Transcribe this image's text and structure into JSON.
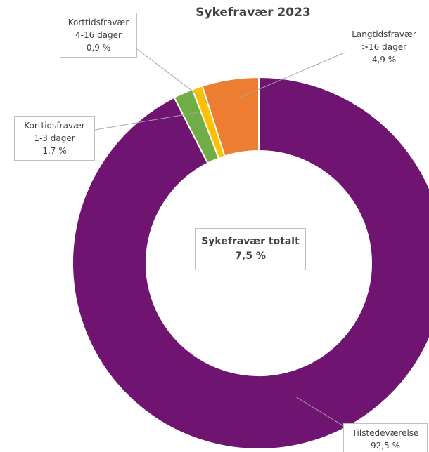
{
  "chart_data": {
    "type": "donut",
    "title": "Sykefravær 2023",
    "categories": [
      "Tilstedeværelse",
      "Korttidsfravær 1-3 dager",
      "Korttidsfravær 4-16 dager",
      "Langtidsfravær >16 dager"
    ],
    "values": [
      92.5,
      1.7,
      0.9,
      4.9
    ],
    "value_labels": [
      "92,5 %",
      "1,7 %",
      "0,9 %",
      "4,9 %"
    ],
    "colors": [
      "#6f1470",
      "#70ad47",
      "#ffc000",
      "#ed7d31"
    ],
    "center_label": "Sykefravær totalt",
    "center_value": "7,5 %"
  }
}
